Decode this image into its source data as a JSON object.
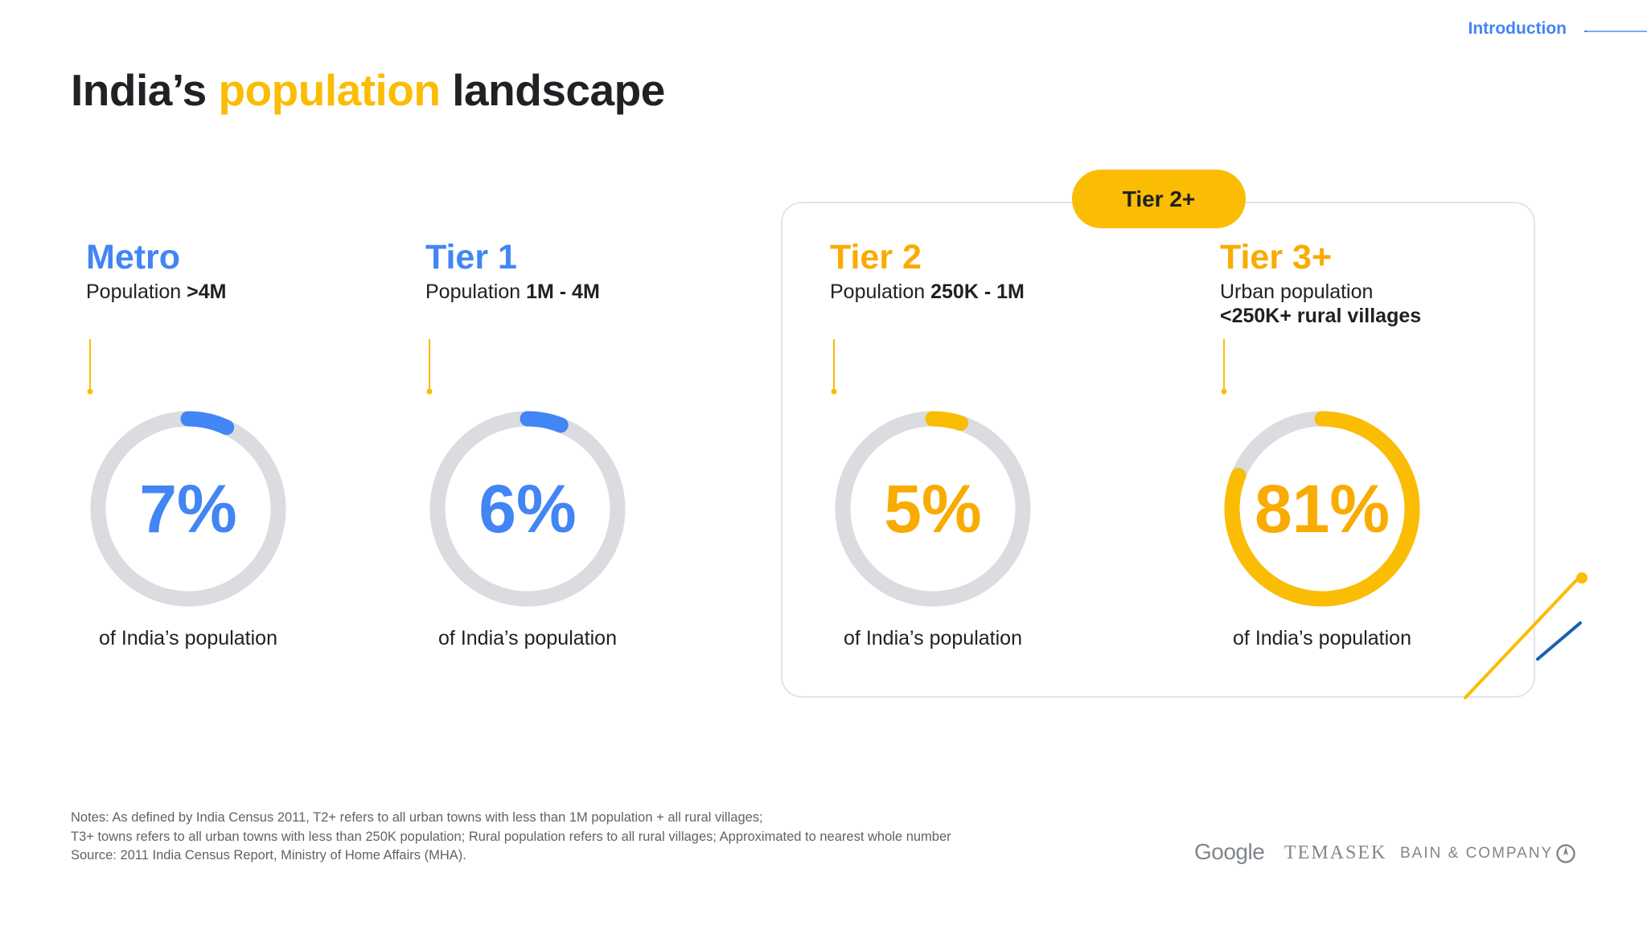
{
  "nav": {
    "section_label": "Introduction"
  },
  "title": {
    "part1": "India’s ",
    "highlight": "population",
    "part2": " landscape"
  },
  "tier_group_label": "Tier 2+",
  "segments": [
    {
      "name": "Metro",
      "desc_prefix": "Population ",
      "desc_value": ">4M",
      "desc_line2": "",
      "share_pct": 7,
      "share_label": "7%",
      "caption": "of India’s population",
      "color": "#4285f4"
    },
    {
      "name": "Tier 1",
      "desc_prefix": "Population ",
      "desc_value": "1M - 4M",
      "desc_line2": "",
      "share_pct": 6,
      "share_label": "6%",
      "caption": "of India’s population",
      "color": "#4285f4"
    },
    {
      "name": "Tier 2",
      "desc_prefix": "Population ",
      "desc_value": "250K - 1M",
      "desc_line2": "",
      "share_pct": 5,
      "share_label": "5%",
      "caption": "of India’s population",
      "color": "#fbbc04"
    },
    {
      "name": "Tier 3+",
      "desc_prefix": "Urban population",
      "desc_value": "",
      "desc_line2": "<250K+ rural villages",
      "share_pct": 81,
      "share_label": "81%",
      "caption": "of India’s population",
      "color": "#fbbc04"
    }
  ],
  "notes": [
    "Notes: As defined by India Census 2011, T2+ refers to all urban towns with less than 1M population + all rural villages;",
    "T3+ towns refers to all urban towns with less than 250K population; Rural population refers to all rural villages; Approximated to nearest whole number",
    "Source: 2011 India Census Report, Ministry of Home Affairs (MHA)."
  ],
  "logos": {
    "google": "Google",
    "temasek": "TEMASEK",
    "bain": "BAIN & COMPANY"
  },
  "colors": {
    "blue": "#4285f4",
    "yellow": "#fbbc04",
    "ring_track": "#dadce0",
    "dark_blue": "#1a5fb4"
  }
}
